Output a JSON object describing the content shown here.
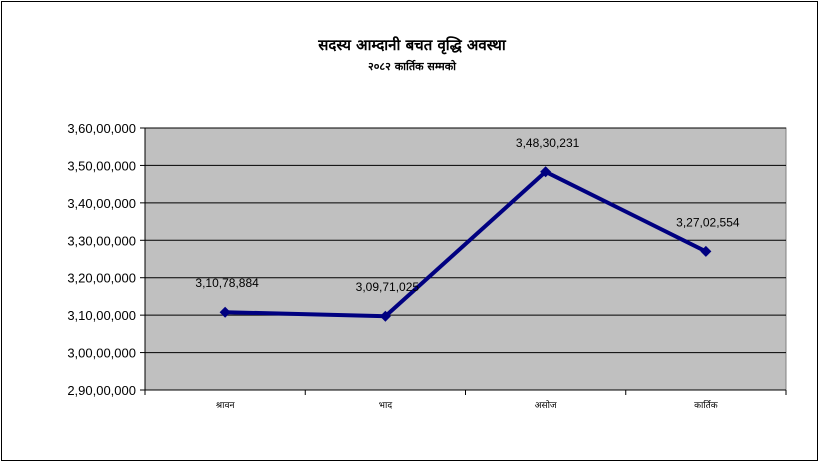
{
  "chart_data": {
    "type": "line",
    "title": "सदस्य आम्दानी बचत वृद्धि अवस्था",
    "subtitle": "२०८२ कार्तिक सम्मको",
    "categories": [
      "श्रावन",
      "भाद",
      "असोज",
      "कार्तिक"
    ],
    "series": [
      {
        "values": [
          31078884,
          30971025,
          34830231,
          32702554
        ],
        "labels": [
          "3,10,78,884",
          "3,09,71,025",
          "3,48,30,231",
          "3,27,02,554"
        ]
      }
    ],
    "ylim": [
      29000000,
      36000000
    ],
    "yticks": [
      29000000,
      30000000,
      31000000,
      32000000,
      33000000,
      34000000,
      35000000,
      36000000
    ],
    "ytick_labels": [
      "2,90,00,000",
      "3,00,00,000",
      "3,10,00,000",
      "3,20,00,000",
      "3,30,00,000",
      "3,40,00,000",
      "3,50,00,000",
      "3,60,00,000"
    ],
    "xlabel": "",
    "ylabel": "",
    "grid": true,
    "legend": "none",
    "colors": {
      "line": "#000080",
      "plot_background": "#c0c0c0",
      "grid": "#000000"
    }
  }
}
